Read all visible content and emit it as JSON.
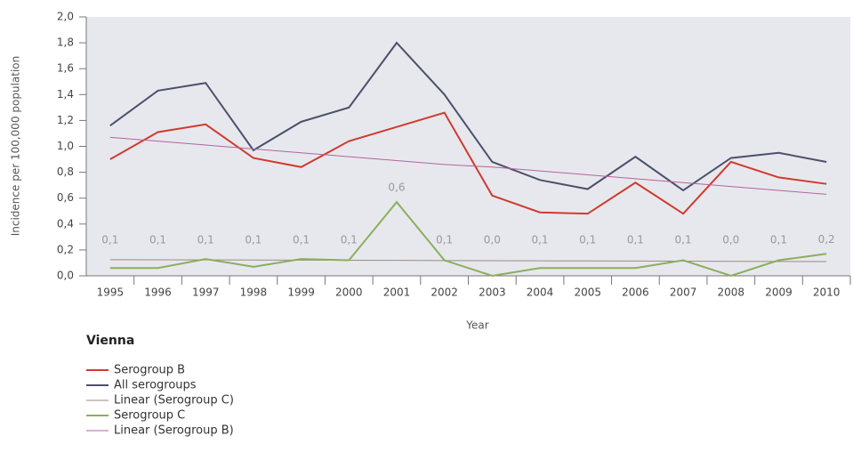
{
  "chart_data": {
    "type": "line",
    "y_label": "Incidence per 100,000 population",
    "x_label": "Year",
    "legend_title": "Vienna",
    "categories": [
      "1995",
      "1996",
      "1997",
      "1998",
      "1999",
      "2000",
      "2001",
      "2002",
      "2003",
      "2004",
      "2005",
      "2006",
      "2007",
      "2008",
      "2009",
      "2010"
    ],
    "ylim": [
      0,
      2
    ],
    "yticks": [
      {
        "value": 0,
        "label": "0,0"
      },
      {
        "value": 0.2,
        "label": "0,2"
      },
      {
        "value": 0.4,
        "label": "0,4"
      },
      {
        "value": 0.6,
        "label": "0,6"
      },
      {
        "value": 0.8,
        "label": "0,8"
      },
      {
        "value": 1,
        "label": "1,0"
      },
      {
        "value": 1.2,
        "label": "1,2"
      },
      {
        "value": 1.4,
        "label": "1,4"
      },
      {
        "value": 1.6,
        "label": "1,6"
      },
      {
        "value": 1.8,
        "label": "1,8"
      },
      {
        "value": 2,
        "label": "2,0"
      }
    ],
    "grid": false,
    "series": [
      {
        "name": "Serogroup B",
        "color": "#d03b2d",
        "width": 2,
        "values": [
          0.9,
          1.11,
          1.17,
          0.91,
          0.84,
          1.04,
          1.15,
          1.26,
          0.62,
          0.49,
          0.48,
          0.72,
          0.48,
          0.88,
          0.76,
          0.71
        ]
      },
      {
        "name": "All serogroups",
        "color": "#4b5169",
        "width": 2,
        "values": [
          1.16,
          1.43,
          1.49,
          0.97,
          1.19,
          1.3,
          1.8,
          1.4,
          0.88,
          0.74,
          0.67,
          0.92,
          0.66,
          0.91,
          0.95,
          0.88
        ]
      },
      {
        "name": "Linear (Serogroup C)",
        "color": "#9b8a7c",
        "width": 1,
        "values": [
          0.125,
          0.124,
          0.123,
          0.122,
          0.121,
          0.12,
          0.119,
          0.118,
          0.117,
          0.116,
          0.115,
          0.114,
          0.113,
          0.112,
          0.111,
          0.11
        ]
      },
      {
        "name": "Serogroup C",
        "color": "#8cae5c",
        "width": 2,
        "values": [
          0.06,
          0.06,
          0.13,
          0.07,
          0.13,
          0.12,
          0.57,
          0.12,
          0.0,
          0.06,
          0.06,
          0.06,
          0.12,
          0.0,
          0.12,
          0.17
        ],
        "value_labels": [
          "0,1",
          "0,1",
          "0,1",
          "0,1",
          "0,1",
          "0,1",
          "0,6",
          "0,1",
          "0,0",
          "0,1",
          "0,1",
          "0,1",
          "0,1",
          "0,0",
          "0,1",
          "0,2"
        ]
      },
      {
        "name": "Linear (Serogroup B)",
        "color": "#b3649c",
        "width": 1,
        "values": [
          1.07,
          1.04,
          1.01,
          0.98,
          0.95,
          0.92,
          0.89,
          0.86,
          0.84,
          0.81,
          0.78,
          0.75,
          0.72,
          0.69,
          0.66,
          0.63
        ]
      }
    ]
  }
}
